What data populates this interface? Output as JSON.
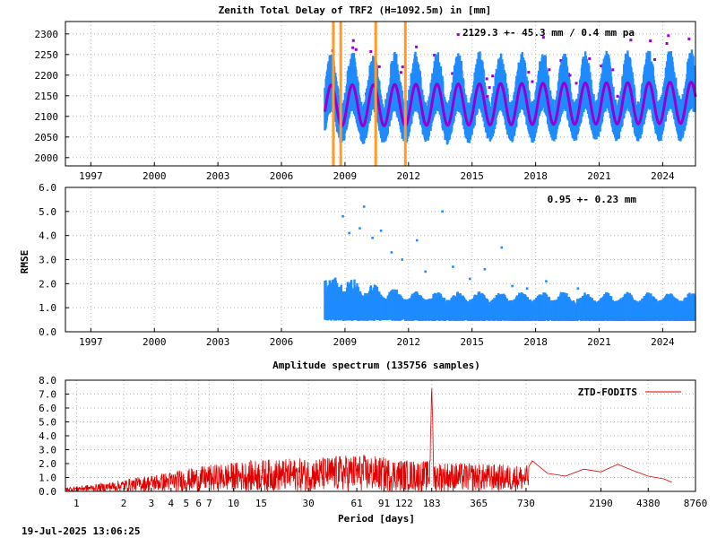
{
  "footer": {
    "timestamp": "19-Jul-2025 13:06:25"
  },
  "chart_data": [
    {
      "id": "ztd",
      "type": "scatter",
      "title": "Zenith Total Delay of TRF2 (H=1092.5m) in [mm]",
      "annotation": "2129.3 +-  45.3 mm /  0.4 mm pa",
      "xlim": [
        1995.8,
        2025.55
      ],
      "ylim": [
        1980,
        2330
      ],
      "x_ticks": [
        1997,
        2000,
        2003,
        2006,
        2009,
        2012,
        2015,
        2018,
        2021,
        2024
      ],
      "y_ticks": [
        2000,
        2050,
        2100,
        2150,
        2200,
        2250,
        2300
      ],
      "grid": true,
      "data_start": 2008.05,
      "data_end": 2025.55,
      "mean": 2129.3,
      "std": 45.3,
      "trend_per_year": 0.4,
      "seasonal_amplitude": 50,
      "vertical_markers": [
        2008.45,
        2008.8,
        2010.45,
        2011.85
      ],
      "colors": {
        "points": "#1f8bff",
        "model": "#9400d3",
        "markers": "#ff9b26",
        "outliers": "#9400d3"
      }
    },
    {
      "id": "rmse",
      "type": "scatter",
      "ylabel": "RMSE",
      "annotation": "0.95 +-  0.23 mm",
      "xlim": [
        1995.8,
        2025.55
      ],
      "ylim": [
        0,
        6
      ],
      "x_ticks": [
        1997,
        2000,
        2003,
        2006,
        2009,
        2012,
        2015,
        2018,
        2021,
        2024
      ],
      "y_ticks": [
        0.0,
        1.0,
        2.0,
        3.0,
        4.0,
        5.0,
        6.0
      ],
      "grid": true,
      "data_start": 2008.05,
      "data_end": 2025.55,
      "mean": 0.95,
      "std": 0.23,
      "outliers": [
        [
          2008.9,
          4.8
        ],
        [
          2009.2,
          4.1
        ],
        [
          2009.7,
          4.3
        ],
        [
          2009.9,
          5.2
        ],
        [
          2010.3,
          3.9
        ],
        [
          2010.7,
          4.2
        ],
        [
          2011.2,
          3.3
        ],
        [
          2011.7,
          3.0
        ],
        [
          2012.4,
          3.8
        ],
        [
          2012.8,
          2.5
        ],
        [
          2013.6,
          5.0
        ],
        [
          2014.1,
          2.7
        ],
        [
          2014.9,
          2.2
        ],
        [
          2015.6,
          2.6
        ],
        [
          2016.4,
          3.5
        ],
        [
          2016.9,
          1.9
        ],
        [
          2017.6,
          1.8
        ],
        [
          2018.5,
          2.1
        ],
        [
          2019.2,
          1.6
        ],
        [
          2020.0,
          1.8
        ]
      ],
      "colors": {
        "points": "#1f8bff"
      }
    },
    {
      "id": "spectrum",
      "type": "line",
      "title": "Amplitude spectrum (135756 samples)",
      "xlabel": "Period [days]",
      "xscale": "log",
      "xlim": [
        0.85,
        8760
      ],
      "ylim": [
        0,
        8
      ],
      "x_ticks": [
        1,
        2,
        3,
        4,
        5,
        6,
        7,
        10,
        15,
        30,
        61,
        91,
        122,
        183,
        365,
        730,
        2190,
        4380,
        8760
      ],
      "y_ticks": [
        0.0,
        1.0,
        2.0,
        3.0,
        4.0,
        5.0,
        6.0,
        7.0,
        8.0
      ],
      "grid": true,
      "legend": {
        "position": "top-right",
        "label": "ZTD-FODITS"
      },
      "peak": {
        "period": 183,
        "amplitude": 7.8
      },
      "envelope": [
        [
          0.85,
          0.3
        ],
        [
          1.5,
          0.6
        ],
        [
          3,
          1.2
        ],
        [
          7,
          1.9
        ],
        [
          15,
          2.3
        ],
        [
          30,
          2.4
        ],
        [
          61,
          2.7
        ],
        [
          122,
          2.3
        ],
        [
          365,
          2.0
        ],
        [
          730,
          1.9
        ],
        [
          2190,
          1.9
        ],
        [
          4380,
          1.0
        ],
        [
          6000,
          0.6
        ]
      ],
      "smooth_tail": [
        [
          800,
          2.2
        ],
        [
          1000,
          1.3
        ],
        [
          1300,
          1.1
        ],
        [
          1700,
          1.6
        ],
        [
          2190,
          1.4
        ],
        [
          2800,
          1.95
        ],
        [
          3500,
          1.5
        ],
        [
          4380,
          1.1
        ],
        [
          5500,
          0.9
        ],
        [
          6200,
          0.65
        ]
      ],
      "colors": {
        "line": "#e00000"
      }
    }
  ]
}
